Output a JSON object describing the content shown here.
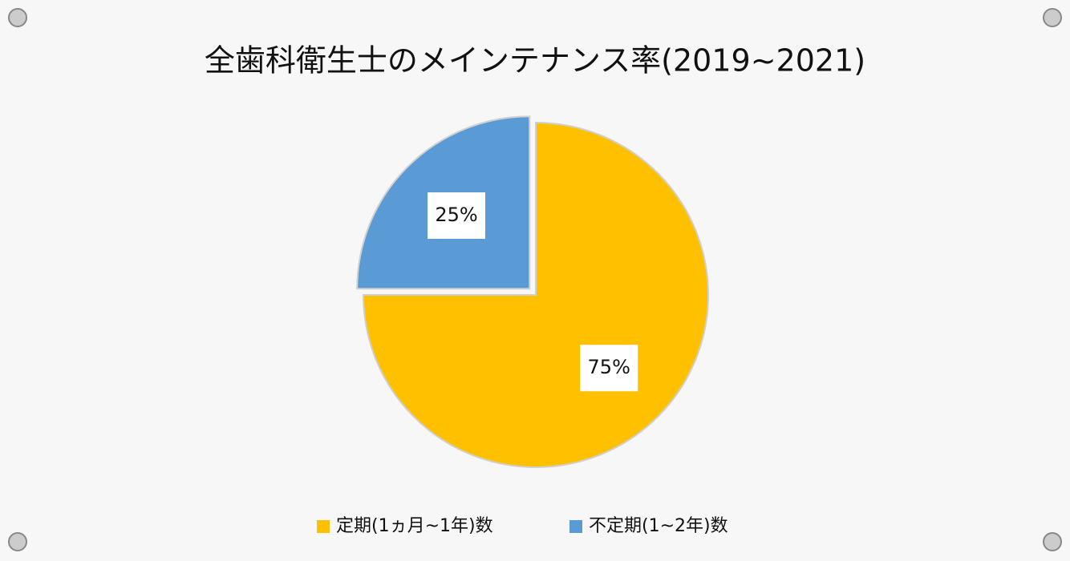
{
  "chart_data": {
    "type": "pie",
    "title": "全歯科衛生士のメインテナンス率(2019~2021)",
    "categories": [
      "定期(1ヵ月~1年)数",
      "不定期(1~2年)数"
    ],
    "values": [
      75,
      25
    ],
    "value_labels": [
      "75%",
      "25%"
    ],
    "colors": [
      "#ffc000",
      "#5b9bd5"
    ]
  }
}
